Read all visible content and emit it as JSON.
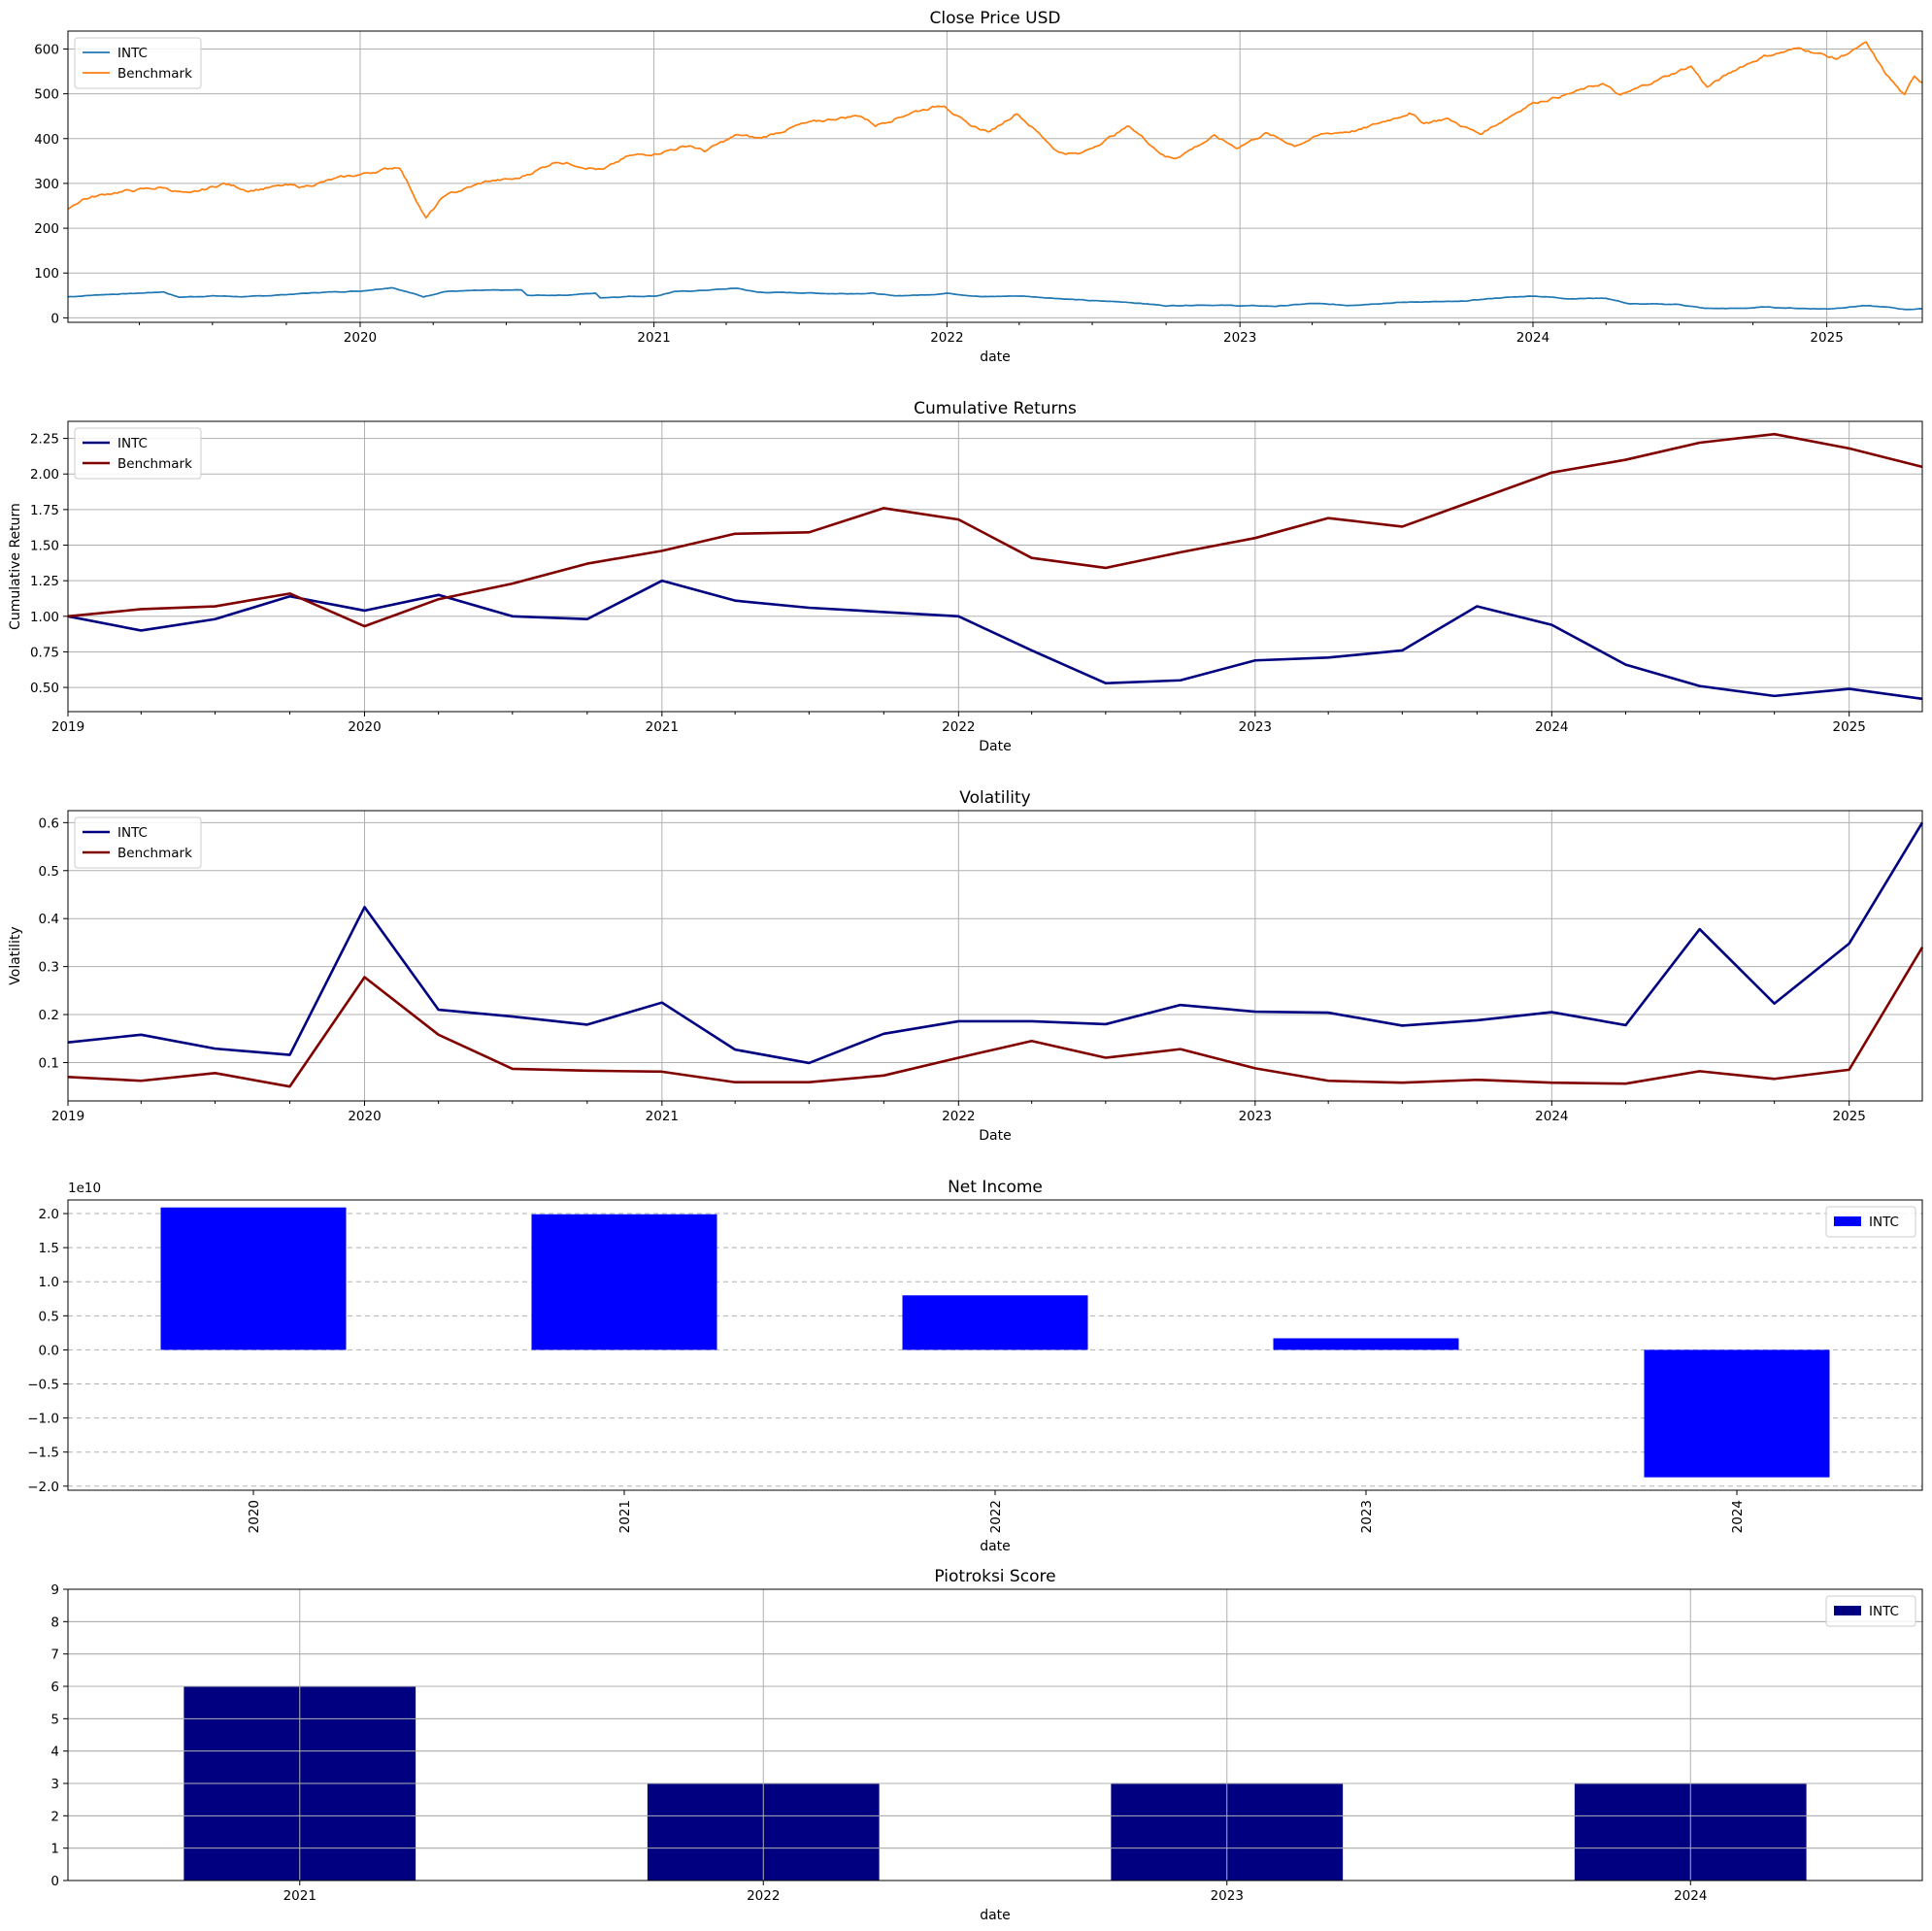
{
  "chart_data": [
    {
      "type": "line",
      "title": "Close Price USD",
      "xlabel": "date",
      "ylabel": "",
      "x_range": [
        "2019-01-02",
        "2025-04-30"
      ],
      "ylim": [
        -10,
        640
      ],
      "y_ticks": [
        0,
        100,
        200,
        300,
        400,
        500,
        600
      ],
      "x_ticks": [
        "2020",
        "2021",
        "2022",
        "2023",
        "2024",
        "2025"
      ],
      "grid": true,
      "legend": "upper left",
      "series": [
        {
          "name": "INTC",
          "color": "#1f77b4",
          "points": [
            [
              "2019-01-02",
              47
            ],
            [
              "2019-02-15",
              52
            ],
            [
              "2019-04-01",
              55
            ],
            [
              "2019-05-01",
              58
            ],
            [
              "2019-05-20",
              46
            ],
            [
              "2019-07-01",
              49
            ],
            [
              "2019-08-15",
              47
            ],
            [
              "2019-10-01",
              52
            ],
            [
              "2019-11-15",
              57
            ],
            [
              "2020-01-02",
              60
            ],
            [
              "2020-02-10",
              68
            ],
            [
              "2020-03-20",
              47
            ],
            [
              "2020-04-15",
              59
            ],
            [
              "2020-06-01",
              61
            ],
            [
              "2020-07-20",
              62
            ],
            [
              "2020-07-27",
              50
            ],
            [
              "2020-09-15",
              51
            ],
            [
              "2020-10-20",
              55
            ],
            [
              "2020-10-26",
              45
            ],
            [
              "2020-12-01",
              48
            ],
            [
              "2021-01-04",
              49
            ],
            [
              "2021-01-25",
              58
            ],
            [
              "2021-03-01",
              61
            ],
            [
              "2021-04-15",
              66
            ],
            [
              "2021-05-10",
              57
            ],
            [
              "2021-07-01",
              56
            ],
            [
              "2021-08-15",
              54
            ],
            [
              "2021-10-01",
              55
            ],
            [
              "2021-10-25",
              49
            ],
            [
              "2021-12-01",
              51
            ],
            [
              "2022-01-03",
              55
            ],
            [
              "2022-02-15",
              47
            ],
            [
              "2022-04-01",
              49
            ],
            [
              "2022-05-15",
              44
            ],
            [
              "2022-07-01",
              38
            ],
            [
              "2022-08-15",
              35
            ],
            [
              "2022-10-01",
              27
            ],
            [
              "2022-11-15",
              29
            ],
            [
              "2023-01-03",
              27
            ],
            [
              "2023-02-15",
              26
            ],
            [
              "2023-04-01",
              32
            ],
            [
              "2023-05-15",
              28
            ],
            [
              "2023-07-01",
              33
            ],
            [
              "2023-08-15",
              36
            ],
            [
              "2023-10-01",
              36
            ],
            [
              "2023-11-15",
              44
            ],
            [
              "2024-01-02",
              49
            ],
            [
              "2024-02-15",
              43
            ],
            [
              "2024-04-01",
              44
            ],
            [
              "2024-05-01",
              31
            ],
            [
              "2024-07-01",
              30
            ],
            [
              "2024-08-02",
              21
            ],
            [
              "2024-09-15",
              21
            ],
            [
              "2024-10-15",
              24
            ],
            [
              "2024-12-02",
              21
            ],
            [
              "2025-01-02",
              20
            ],
            [
              "2025-02-15",
              27
            ],
            [
              "2025-03-15",
              24
            ],
            [
              "2025-04-08",
              19
            ],
            [
              "2025-04-30",
              20
            ]
          ]
        },
        {
          "name": "Benchmark",
          "color": "#ff7f0e",
          "points": [
            [
              "2019-01-02",
              245
            ],
            [
              "2019-01-20",
              265
            ],
            [
              "2019-03-01",
              280
            ],
            [
              "2019-04-30",
              291
            ],
            [
              "2019-06-03",
              275
            ],
            [
              "2019-07-15",
              300
            ],
            [
              "2019-08-15",
              285
            ],
            [
              "2019-09-30",
              295
            ],
            [
              "2019-10-20",
              292
            ],
            [
              "2019-12-02",
              310
            ],
            [
              "2020-01-02",
              320
            ],
            [
              "2020-02-19",
              338
            ],
            [
              "2020-03-23",
              222
            ],
            [
              "2020-04-15",
              272
            ],
            [
              "2020-06-08",
              305
            ],
            [
              "2020-07-15",
              310
            ],
            [
              "2020-09-02",
              350
            ],
            [
              "2020-10-30",
              330
            ],
            [
              "2020-11-30",
              360
            ],
            [
              "2021-01-04",
              368
            ],
            [
              "2021-02-15",
              385
            ],
            [
              "2021-03-05",
              372
            ],
            [
              "2021-04-15",
              408
            ],
            [
              "2021-05-12",
              400
            ],
            [
              "2021-07-01",
              430
            ],
            [
              "2021-08-15",
              445
            ],
            [
              "2021-09-15",
              452
            ],
            [
              "2021-10-04",
              430
            ],
            [
              "2021-11-20",
              460
            ],
            [
              "2021-12-29",
              476
            ],
            [
              "2022-01-27",
              430
            ],
            [
              "2022-02-24",
              415
            ],
            [
              "2022-03-29",
              458
            ],
            [
              "2022-05-20",
              370
            ],
            [
              "2022-06-16",
              365
            ],
            [
              "2022-08-16",
              428
            ],
            [
              "2022-09-30",
              360
            ],
            [
              "2022-10-12",
              357
            ],
            [
              "2022-11-30",
              405
            ],
            [
              "2022-12-28",
              380
            ],
            [
              "2023-02-02",
              412
            ],
            [
              "2023-03-10",
              385
            ],
            [
              "2023-04-15",
              410
            ],
            [
              "2023-06-01",
              420
            ],
            [
              "2023-07-31",
              458
            ],
            [
              "2023-08-18",
              435
            ],
            [
              "2023-09-15",
              445
            ],
            [
              "2023-10-27",
              410
            ],
            [
              "2023-12-29",
              478
            ],
            [
              "2024-02-15",
              500
            ],
            [
              "2024-03-28",
              523
            ],
            [
              "2024-04-19",
              495
            ],
            [
              "2024-05-31",
              528
            ],
            [
              "2024-07-16",
              562
            ],
            [
              "2024-08-05",
              515
            ],
            [
              "2024-09-15",
              560
            ],
            [
              "2024-10-15",
              584
            ],
            [
              "2024-11-30",
              602
            ],
            [
              "2025-01-13",
              578
            ],
            [
              "2025-02-19",
              612
            ],
            [
              "2025-03-13",
              550
            ],
            [
              "2025-04-08",
              495
            ],
            [
              "2025-04-20",
              540
            ],
            [
              "2025-04-30",
              525
            ]
          ]
        }
      ]
    },
    {
      "type": "line",
      "title": "Cumulative Returns",
      "xlabel": "Date",
      "ylabel": "Cumulative Return",
      "x_range": [
        "2019-01-01",
        "2025-04-01"
      ],
      "ylim": [
        0.33,
        2.37
      ],
      "y_ticks": [
        "0.50",
        "0.75",
        "1.00",
        "1.25",
        "1.50",
        "1.75",
        "2.00",
        "2.25"
      ],
      "x_ticks": [
        "2019",
        "2020",
        "2021",
        "2022",
        "2023",
        "2024",
        "2025"
      ],
      "grid": true,
      "legend": "upper left",
      "series": [
        {
          "name": "INTC",
          "color": "#000080",
          "x": [
            "2019-01-01",
            "2019-04-01",
            "2019-07-01",
            "2019-10-01",
            "2020-01-01",
            "2020-04-01",
            "2020-07-01",
            "2020-10-01",
            "2021-01-01",
            "2021-04-01",
            "2021-07-01",
            "2021-10-01",
            "2022-01-01",
            "2022-04-01",
            "2022-07-01",
            "2022-10-01",
            "2023-01-01",
            "2023-04-01",
            "2023-07-01",
            "2023-10-01",
            "2024-01-01",
            "2024-04-01",
            "2024-07-01",
            "2024-10-01",
            "2025-01-01",
            "2025-04-01"
          ],
          "values": [
            1.0,
            0.9,
            0.98,
            1.14,
            1.04,
            1.15,
            1.0,
            0.98,
            1.25,
            1.11,
            1.06,
            1.03,
            1.0,
            0.76,
            0.53,
            0.55,
            0.69,
            0.71,
            0.76,
            1.07,
            0.94,
            0.66,
            0.51,
            0.44,
            0.49,
            0.42
          ]
        },
        {
          "name": "Benchmark",
          "color": "#800000",
          "x": [
            "2019-01-01",
            "2019-04-01",
            "2019-07-01",
            "2019-10-01",
            "2020-01-01",
            "2020-04-01",
            "2020-07-01",
            "2020-10-01",
            "2021-01-01",
            "2021-04-01",
            "2021-07-01",
            "2021-10-01",
            "2022-01-01",
            "2022-04-01",
            "2022-07-01",
            "2022-10-01",
            "2023-01-01",
            "2023-04-01",
            "2023-07-01",
            "2023-10-01",
            "2024-01-01",
            "2024-04-01",
            "2024-07-01",
            "2024-10-01",
            "2025-01-01",
            "2025-04-01"
          ],
          "values": [
            1.0,
            1.05,
            1.07,
            1.16,
            0.93,
            1.12,
            1.23,
            1.37,
            1.46,
            1.58,
            1.59,
            1.76,
            1.68,
            1.41,
            1.34,
            1.45,
            1.55,
            1.69,
            1.63,
            1.82,
            2.01,
            2.1,
            2.22,
            2.28,
            2.18,
            2.05
          ]
        }
      ]
    },
    {
      "type": "line",
      "title": "Volatility",
      "xlabel": "Date",
      "ylabel": "Volatility",
      "x_range": [
        "2019-01-01",
        "2025-04-01"
      ],
      "ylim": [
        0.02,
        0.625
      ],
      "y_ticks": [
        "0.1",
        "0.2",
        "0.3",
        "0.4",
        "0.5",
        "0.6"
      ],
      "x_ticks": [
        "2019",
        "2020",
        "2021",
        "2022",
        "2023",
        "2024",
        "2025"
      ],
      "grid": true,
      "legend": "upper left",
      "series": [
        {
          "name": "INTC",
          "color": "#000080",
          "x": [
            "2019-01-01",
            "2019-04-01",
            "2019-07-01",
            "2019-10-01",
            "2020-01-01",
            "2020-04-01",
            "2020-07-01",
            "2020-10-01",
            "2021-01-01",
            "2021-04-01",
            "2021-07-01",
            "2021-10-01",
            "2022-01-01",
            "2022-04-01",
            "2022-07-01",
            "2022-10-01",
            "2023-01-01",
            "2023-04-01",
            "2023-07-01",
            "2023-10-01",
            "2024-01-01",
            "2024-04-01",
            "2024-07-01",
            "2024-10-01",
            "2025-01-01",
            "2025-04-01"
          ],
          "values": [
            0.142,
            0.158,
            0.129,
            0.116,
            0.424,
            0.21,
            0.196,
            0.179,
            0.225,
            0.127,
            0.099,
            0.16,
            0.186,
            0.186,
            0.18,
            0.22,
            0.206,
            0.204,
            0.177,
            0.188,
            0.205,
            0.178,
            0.378,
            0.223,
            0.348,
            0.6
          ]
        },
        {
          "name": "Benchmark",
          "color": "#800000",
          "x": [
            "2019-01-01",
            "2019-04-01",
            "2019-07-01",
            "2019-10-01",
            "2020-01-01",
            "2020-04-01",
            "2020-07-01",
            "2020-10-01",
            "2021-01-01",
            "2021-04-01",
            "2021-07-01",
            "2021-10-01",
            "2022-01-01",
            "2022-04-01",
            "2022-07-01",
            "2022-10-01",
            "2023-01-01",
            "2023-04-01",
            "2023-07-01",
            "2023-10-01",
            "2024-01-01",
            "2024-04-01",
            "2024-07-01",
            "2024-10-01",
            "2025-01-01",
            "2025-04-01"
          ],
          "values": [
            0.07,
            0.062,
            0.078,
            0.05,
            0.278,
            0.158,
            0.087,
            0.083,
            0.081,
            0.059,
            0.059,
            0.073,
            0.11,
            0.145,
            0.11,
            0.128,
            0.088,
            0.062,
            0.058,
            0.064,
            0.058,
            0.056,
            0.082,
            0.066,
            0.085,
            0.34
          ]
        }
      ]
    },
    {
      "type": "bar",
      "title": "Net Income",
      "xlabel": "date",
      "ylabel": "",
      "offset_label": "1e10",
      "categories": [
        "2020",
        "2021",
        "2022",
        "2023",
        "2024"
      ],
      "y_ticks": [
        "−2.0",
        "−1.5",
        "−1.0",
        "−0.5",
        "0.0",
        "0.5",
        "1.0",
        "1.5",
        "2.0"
      ],
      "ylim": [
        -2.06,
        2.2
      ],
      "grid": "y-dashed",
      "legend": "upper right",
      "series": [
        {
          "name": "INTC",
          "color": "#0000ff",
          "values": [
            2.09,
            1.99,
            0.8,
            0.17,
            -1.87
          ]
        }
      ]
    },
    {
      "type": "bar",
      "title": "Piotroksi Score",
      "xlabel": "date",
      "ylabel": "",
      "categories": [
        "2021",
        "2022",
        "2023",
        "2024"
      ],
      "y_ticks": [
        "0",
        "1",
        "2",
        "3",
        "4",
        "5",
        "6",
        "7",
        "8",
        "9"
      ],
      "ylim": [
        0,
        9
      ],
      "grid": true,
      "legend": "upper right",
      "series": [
        {
          "name": "INTC",
          "color": "#000080",
          "values": [
            6,
            3,
            3,
            3
          ]
        }
      ]
    }
  ]
}
